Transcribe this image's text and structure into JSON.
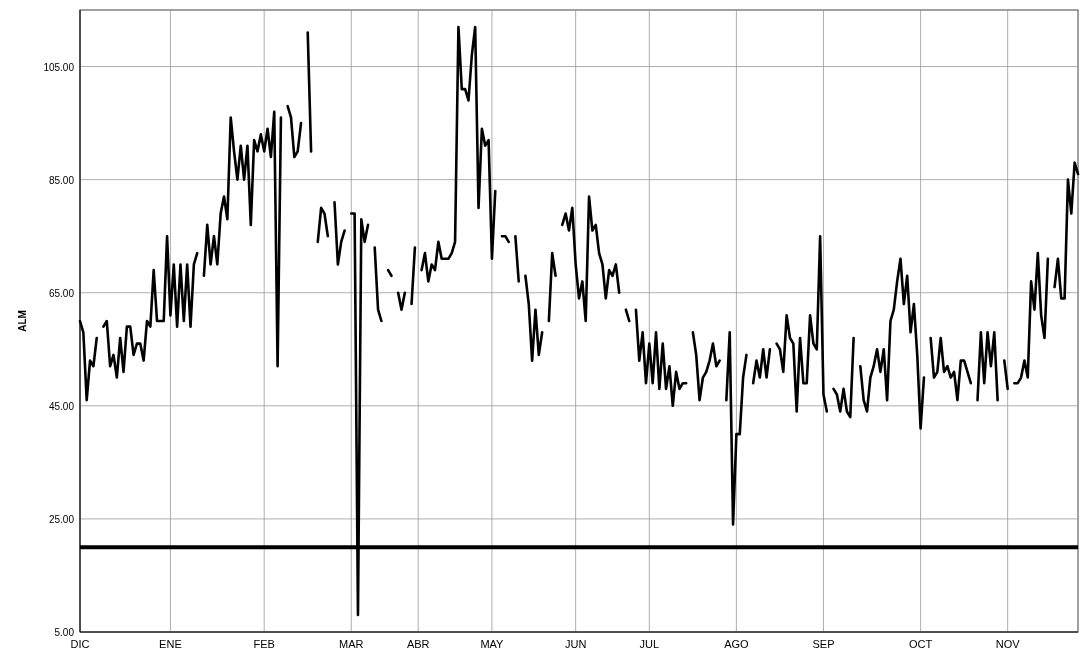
{
  "chart_data": {
    "type": "line",
    "ylabel": "ALM",
    "categories": [
      "DIC",
      null,
      null,
      null,
      null,
      null,
      null,
      null,
      null,
      null,
      null,
      null,
      null,
      null,
      null,
      null,
      null,
      null,
      null,
      null,
      null,
      null,
      null,
      null,
      null,
      null,
      null,
      "ENE",
      null,
      null,
      null,
      null,
      null,
      null,
      null,
      null,
      null,
      null,
      null,
      null,
      null,
      null,
      null,
      null,
      null,
      null,
      null,
      null,
      null,
      null,
      null,
      null,
      null,
      null,
      null,
      "FEB",
      null,
      null,
      null,
      null,
      null,
      null,
      null,
      null,
      null,
      null,
      null,
      null,
      null,
      null,
      null,
      null,
      null,
      null,
      null,
      null,
      null,
      null,
      null,
      null,
      null,
      "MAR",
      null,
      null,
      null,
      null,
      null,
      null,
      null,
      null,
      null,
      null,
      null,
      null,
      null,
      null,
      null,
      null,
      null,
      null,
      null,
      "ABR",
      null,
      null,
      null,
      null,
      null,
      null,
      null,
      null,
      null,
      null,
      null,
      null,
      null,
      null,
      null,
      null,
      null,
      null,
      null,
      null,
      null,
      "MAY",
      null,
      null,
      null,
      null,
      null,
      null,
      null,
      null,
      null,
      null,
      null,
      null,
      null,
      null,
      null,
      null,
      null,
      null,
      null,
      null,
      null,
      null,
      null,
      null,
      "JUN",
      null,
      null,
      null,
      null,
      null,
      null,
      null,
      null,
      null,
      null,
      null,
      null,
      null,
      null,
      null,
      null,
      null,
      null,
      null,
      null,
      null,
      "JUL",
      null,
      null,
      null,
      null,
      null,
      null,
      null,
      null,
      null,
      null,
      null,
      null,
      null,
      null,
      null,
      null,
      null,
      null,
      null,
      null,
      null,
      null,
      null,
      null,
      null,
      "AGO",
      null,
      null,
      null,
      null,
      null,
      null,
      null,
      null,
      null,
      null,
      null,
      null,
      null,
      null,
      null,
      null,
      null,
      null,
      null,
      null,
      null,
      null,
      null,
      null,
      null,
      "SEP",
      null,
      null,
      null,
      null,
      null,
      null,
      null,
      null,
      null,
      null,
      null,
      null,
      null,
      null,
      null,
      null,
      null,
      null,
      null,
      null,
      null,
      null,
      null,
      null,
      null,
      null,
      null,
      null,
      "OCT",
      null,
      null,
      null,
      null,
      null,
      null,
      null,
      null,
      null,
      null,
      null,
      null,
      null,
      null,
      null,
      null,
      null,
      null,
      null,
      null,
      null,
      null,
      null,
      null,
      null,
      "NOV",
      null,
      null,
      null,
      null,
      null,
      null,
      null,
      null,
      null,
      null,
      null,
      null,
      null,
      null,
      null,
      null,
      null,
      null,
      null,
      null,
      null
    ],
    "ylim": [
      5,
      115
    ],
    "yticks": [
      {
        "value": 5,
        "label": "5.00"
      },
      {
        "value": 25,
        "label": "25.00"
      },
      {
        "value": 45,
        "label": "45.00"
      },
      {
        "value": 65,
        "label": "65.00"
      },
      {
        "value": 85,
        "label": "85.00"
      },
      {
        "value": 105,
        "label": "105.00"
      }
    ],
    "grid": true,
    "marker": "none",
    "line_style": "solid",
    "ref_lines": [
      {
        "axis": "y",
        "value": 20,
        "color": "#000000"
      }
    ],
    "series": [
      {
        "color": "#000000",
        "values": [
          60,
          58,
          46,
          53,
          52,
          57,
          null,
          59,
          60,
          52,
          54,
          50,
          57,
          51,
          59,
          59,
          54,
          56,
          56,
          53,
          60,
          59,
          69,
          60,
          60,
          60,
          75,
          61,
          70,
          59,
          70,
          60,
          70,
          59,
          70,
          72,
          null,
          68,
          77,
          70,
          75,
          70,
          79,
          82,
          78,
          96,
          90,
          85,
          91,
          85,
          91,
          77,
          92,
          90,
          93,
          90,
          94,
          89,
          97,
          52,
          96,
          null,
          98,
          96,
          89,
          90,
          95,
          null,
          111,
          90,
          null,
          74,
          80,
          79,
          75,
          null,
          81,
          70,
          74,
          76,
          null,
          79,
          79,
          8,
          78,
          74,
          77,
          null,
          73,
          62,
          60,
          null,
          69,
          68,
          null,
          65,
          62,
          65,
          null,
          63,
          73,
          null,
          69,
          72,
          67,
          70,
          69,
          74,
          71,
          71,
          71,
          72,
          74,
          112,
          101,
          101,
          99,
          107,
          112,
          80,
          94,
          91,
          92,
          71,
          83,
          null,
          75,
          75,
          74,
          null,
          75,
          67,
          null,
          68,
          63,
          53,
          62,
          54,
          58,
          null,
          60,
          72,
          68,
          null,
          77,
          79,
          76,
          80,
          70,
          64,
          67,
          60,
          82,
          76,
          77,
          72,
          70,
          64,
          69,
          68,
          70,
          65,
          null,
          62,
          60,
          null,
          62,
          53,
          58,
          49,
          56,
          49,
          58,
          48,
          56,
          48,
          52,
          45,
          51,
          48,
          49,
          49,
          null,
          58,
          54,
          46,
          50,
          51,
          53,
          56,
          52,
          53,
          null,
          46,
          58,
          24,
          40,
          40,
          50,
          54,
          null,
          49,
          53,
          50,
          55,
          50,
          55,
          null,
          56,
          55,
          51,
          61,
          57,
          56,
          44,
          57,
          49,
          49,
          61,
          56,
          55,
          75,
          47,
          44,
          null,
          48,
          47,
          44,
          48,
          44,
          43,
          57,
          null,
          52,
          46,
          44,
          50,
          52,
          55,
          51,
          55,
          46,
          60,
          62,
          67,
          71,
          63,
          68,
          58,
          63,
          54,
          41,
          50,
          null,
          57,
          50,
          51,
          57,
          51,
          52,
          50,
          51,
          46,
          53,
          53,
          51,
          49,
          null,
          46,
          58,
          49,
          58,
          52,
          58,
          46,
          null,
          53,
          48,
          null,
          49,
          49,
          50,
          53,
          50,
          67,
          62,
          72,
          61,
          57,
          71,
          null,
          66,
          71,
          64,
          64,
          85,
          79,
          88,
          86
        ]
      }
    ]
  }
}
